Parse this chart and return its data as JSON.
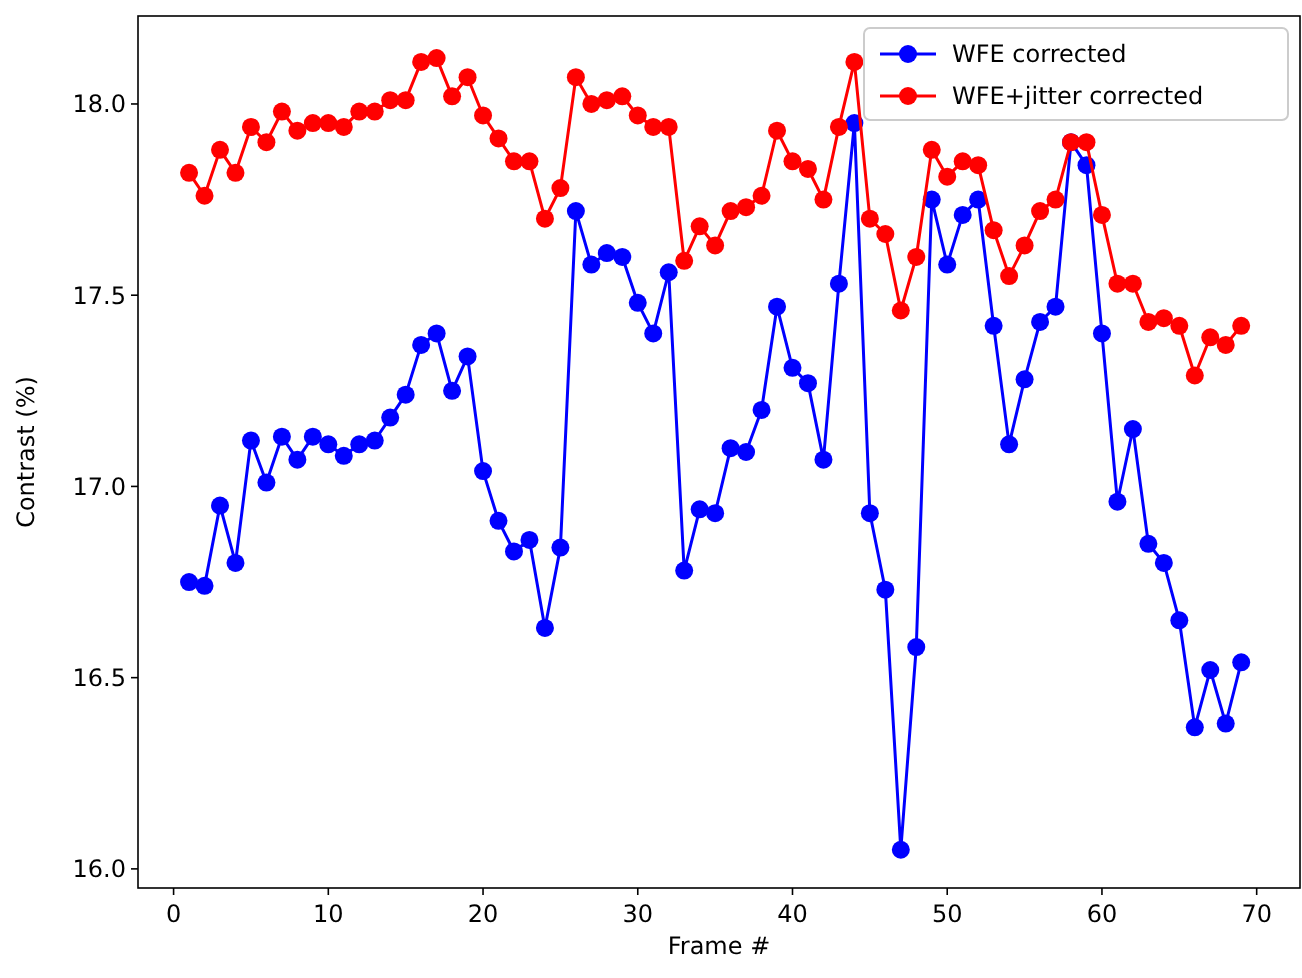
{
  "chart_data": {
    "type": "line",
    "xlabel": "Frame #",
    "ylabel": "Contrast (%)",
    "x": [
      1,
      2,
      3,
      4,
      5,
      6,
      7,
      8,
      9,
      10,
      11,
      12,
      13,
      14,
      15,
      16,
      17,
      18,
      19,
      20,
      21,
      22,
      23,
      24,
      25,
      26,
      27,
      28,
      29,
      30,
      31,
      32,
      33,
      34,
      35,
      36,
      37,
      38,
      39,
      40,
      41,
      42,
      43,
      44,
      45,
      46,
      47,
      48,
      49,
      50,
      51,
      52,
      53,
      54,
      55,
      56,
      57,
      58,
      59,
      60,
      61,
      62,
      63,
      64,
      65,
      66,
      67,
      68,
      69
    ],
    "series": [
      {
        "name": "WFE corrected",
        "color": "#0000ff",
        "values": [
          16.75,
          16.74,
          16.95,
          16.8,
          17.12,
          17.01,
          17.13,
          17.07,
          17.13,
          17.11,
          17.08,
          17.11,
          17.12,
          17.18,
          17.24,
          17.37,
          17.4,
          17.25,
          17.34,
          17.04,
          16.91,
          16.83,
          16.86,
          16.63,
          16.84,
          17.72,
          17.58,
          17.61,
          17.6,
          17.48,
          17.4,
          17.56,
          16.78,
          16.94,
          16.93,
          17.1,
          17.09,
          17.2,
          17.47,
          17.31,
          17.27,
          17.07,
          17.53,
          17.95,
          16.93,
          16.73,
          16.05,
          16.58,
          17.75,
          17.58,
          17.71,
          17.75,
          17.42,
          17.11,
          17.28,
          17.43,
          17.47,
          17.9,
          17.84,
          17.4,
          16.96,
          17.15,
          16.85,
          16.8,
          16.65,
          16.37,
          16.52,
          16.38,
          16.54
        ]
      },
      {
        "name": "WFE+jitter corrected",
        "color": "#ff0000",
        "values": [
          17.82,
          17.76,
          17.88,
          17.82,
          17.94,
          17.9,
          17.98,
          17.93,
          17.95,
          17.95,
          17.94,
          17.98,
          17.98,
          18.01,
          18.01,
          18.11,
          18.12,
          18.02,
          18.07,
          17.97,
          17.91,
          17.85,
          17.85,
          17.7,
          17.78,
          18.07,
          18.0,
          18.01,
          18.02,
          17.97,
          17.94,
          17.94,
          17.59,
          17.68,
          17.63,
          17.72,
          17.73,
          17.76,
          17.93,
          17.85,
          17.83,
          17.75,
          17.94,
          18.11,
          17.7,
          17.66,
          17.46,
          17.6,
          17.88,
          17.81,
          17.85,
          17.84,
          17.67,
          17.55,
          17.63,
          17.72,
          17.75,
          17.9,
          17.9,
          17.71,
          17.53,
          17.53,
          17.43,
          17.44,
          17.42,
          17.29,
          17.39,
          17.37,
          17.42
        ]
      }
    ],
    "xlim": [
      -2.3,
      72.8
    ],
    "xticks": [
      0,
      10,
      20,
      30,
      40,
      50,
      60,
      70
    ],
    "ylim": [
      15.95,
      18.23
    ],
    "yticks": [
      {
        "value": 16,
        "label": "16.0"
      },
      {
        "value": 16.5,
        "label": "16.5"
      },
      {
        "value": 17,
        "label": "17.0"
      },
      {
        "value": 17.5,
        "label": "17.5"
      },
      {
        "value": 18,
        "label": "18.0"
      }
    ],
    "marker": "circle",
    "line_style": "solid",
    "legend": "top right",
    "grid": false
  }
}
